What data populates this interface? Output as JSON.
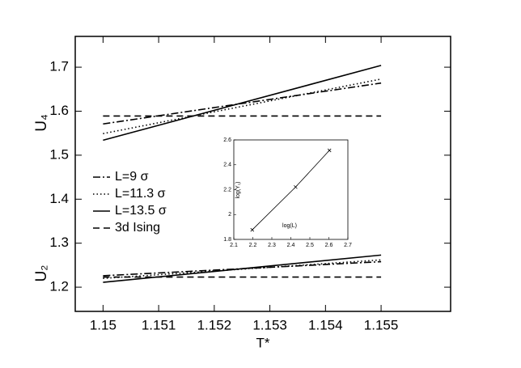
{
  "chart_data": [
    {
      "type": "line",
      "xlabel": "T*",
      "annotations": [
        "U₄",
        "U₂"
      ],
      "xlim": [
        1.1495,
        1.15625
      ],
      "ylim": [
        1.145,
        1.77
      ],
      "xticks": [
        1.15,
        1.151,
        1.152,
        1.153,
        1.154,
        1.155
      ],
      "yticks": [
        1.2,
        1.3,
        1.4,
        1.5,
        1.6,
        1.7
      ],
      "legend": "left",
      "series": [
        {
          "name": "L=9 σ",
          "color": "#000000",
          "linestyle": "dashdot",
          "x": [
            1.15,
            1.155
          ],
          "u4": [
            1.571,
            1.664
          ],
          "u2": [
            1.226,
            1.258
          ]
        },
        {
          "name": "L=11.3 σ",
          "color": "#000000",
          "linestyle": "dotted",
          "x": [
            1.15,
            1.155
          ],
          "u4": [
            1.549,
            1.673
          ],
          "u2": [
            1.22,
            1.262
          ]
        },
        {
          "name": "L=13.5 σ",
          "color": "#000000",
          "linestyle": "solid",
          "x": [
            1.15,
            1.155
          ],
          "u4": [
            1.534,
            1.704
          ],
          "u2": [
            1.211,
            1.273
          ]
        },
        {
          "name": "3d Ising",
          "color": "#000000",
          "linestyle": "dashed",
          "x": [
            1.15,
            1.155
          ],
          "u4": [
            1.589,
            1.589
          ],
          "u2": [
            1.223,
            1.223
          ]
        }
      ]
    },
    {
      "type": "scatter",
      "xlabel": "log(L)",
      "ylabel": "log(Y₁)",
      "xlim": [
        2.1,
        2.7
      ],
      "ylim": [
        1.8,
        2.6
      ],
      "xticks": [
        2.1,
        2.2,
        2.3,
        2.4,
        2.5,
        2.6,
        2.7
      ],
      "yticks": [
        1.8,
        2,
        2.2,
        2.4,
        2.6
      ],
      "x": [
        2.197,
        2.425,
        2.603
      ],
      "values": [
        1.877,
        2.221,
        2.516
      ],
      "color": "#000000"
    }
  ]
}
